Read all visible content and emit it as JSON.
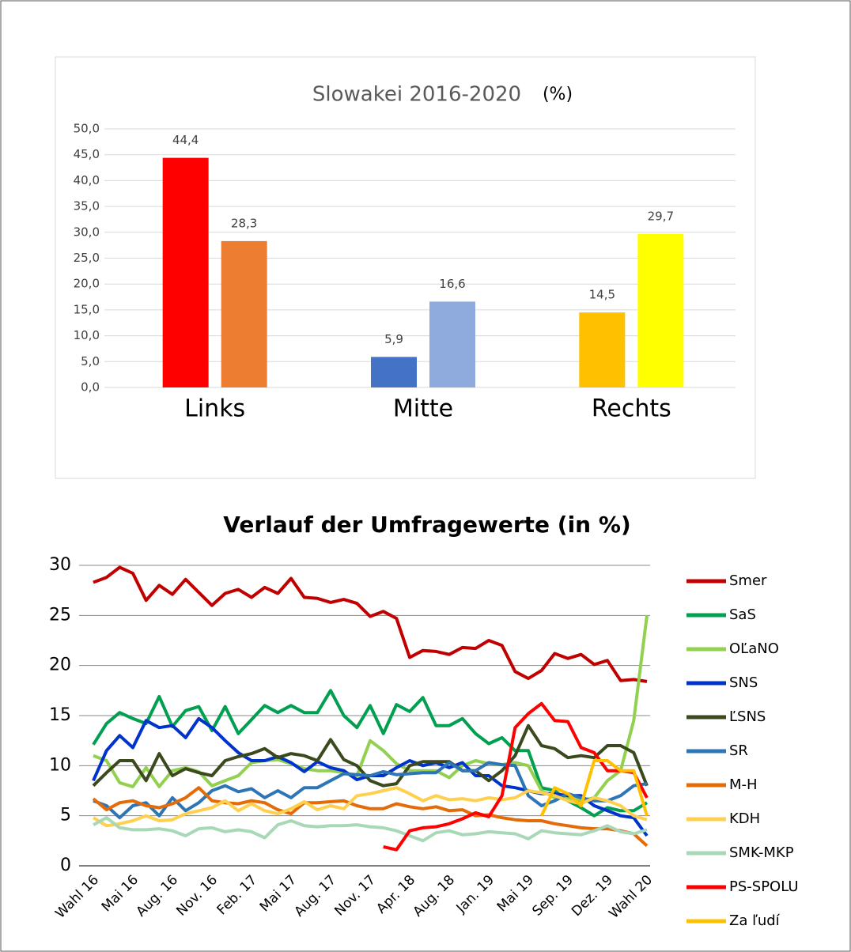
{
  "chart_data": [
    {
      "type": "bar",
      "title": "Slowakei 2016-2020",
      "subtitle": "(%)",
      "categories": [
        "Links",
        "Mitte",
        "Rechts"
      ],
      "series": [
        {
          "values": [
            44.4,
            5.9,
            14.5
          ],
          "value_labels": [
            "44,4",
            "5,9",
            "14,5"
          ],
          "colors": [
            "#ff0000",
            "#4472c4",
            "#ffc000"
          ]
        },
        {
          "values": [
            28.3,
            16.6,
            29.7
          ],
          "value_labels": [
            "28,3",
            "16,6",
            "29,7"
          ],
          "colors": [
            "#ed7d31",
            "#8faadc",
            "#ffff00"
          ]
        }
      ],
      "ylim": [
        0,
        50
      ],
      "yticks": [
        {
          "value": 0,
          "label": "0,0"
        },
        {
          "value": 5,
          "label": "5,0"
        },
        {
          "value": 10,
          "label": "10,0"
        },
        {
          "value": 15,
          "label": "15,0"
        },
        {
          "value": 20,
          "label": "20,0"
        },
        {
          "value": 25,
          "label": "25,0"
        },
        {
          "value": 30,
          "label": "30,0"
        },
        {
          "value": 35,
          "label": "35,0"
        },
        {
          "value": 40,
          "label": "40,0"
        },
        {
          "value": 45,
          "label": "45,0"
        },
        {
          "value": 50,
          "label": "50,0"
        }
      ],
      "grid": true
    },
    {
      "type": "line",
      "title": "Verlauf der Umfragewerte (in %)",
      "categories": [
        "Wahl 16",
        null,
        null,
        "Mai 16",
        null,
        null,
        "Aug. 16",
        null,
        null,
        "Nov. 16",
        null,
        null,
        "Feb. 17",
        null,
        null,
        "Mai 17",
        null,
        null,
        "Aug. 17",
        null,
        null,
        "Nov. 17",
        null,
        null,
        "Apr. 18",
        null,
        null,
        "Aug. 18",
        null,
        null,
        "Jan. 19",
        null,
        null,
        "Mai 19",
        null,
        null,
        "Sep. 19",
        null,
        null,
        "Dez. 19",
        null,
        null,
        "Wahl 20"
      ],
      "ylim": [
        0,
        30
      ],
      "yticks": [
        0,
        5,
        10,
        15,
        20,
        25,
        30
      ],
      "grid": true,
      "legend": "right",
      "series": [
        {
          "name": "Smer",
          "color": "#c00000",
          "values": [
            28.3,
            28.8,
            29.8,
            29.2,
            26.5,
            28,
            27.1,
            28.6,
            27.3,
            26,
            27.2,
            27.6,
            26.8,
            27.8,
            27.2,
            28.7,
            26.8,
            26.7,
            26.3,
            26.6,
            26.2,
            24.9,
            25.4,
            24.7,
            20.8,
            21.5,
            21.4,
            21.1,
            21.8,
            21.7,
            22.5,
            22,
            19.4,
            18.7,
            19.5,
            21.2,
            20.7,
            21.1,
            20.1,
            20.5,
            18.5,
            18.6,
            18.4
          ]
        },
        {
          "name": "SaS",
          "color": "#00a050",
          "values": [
            12.1,
            14.2,
            15.3,
            14.7,
            14.2,
            16.9,
            13.9,
            15.5,
            15.9,
            13.5,
            15.9,
            13.2,
            14.6,
            16,
            15.3,
            16,
            15.3,
            15.3,
            17.5,
            15,
            13.8,
            16,
            13.2,
            16.1,
            15.4,
            16.8,
            14,
            14,
            14.7,
            13.2,
            12.2,
            12.8,
            11.5,
            11.5,
            7.8,
            7.5,
            6.5,
            5.8,
            5,
            5.8,
            5.5,
            5.5,
            6.3
          ]
        },
        {
          "name": "OĽaNO",
          "color": "#92d050",
          "values": [
            11,
            10.5,
            8.3,
            7.9,
            9.8,
            7.9,
            9.5,
            9.8,
            9.4,
            8,
            8.5,
            9,
            10.3,
            10.5,
            10.6,
            10.2,
            9.7,
            9.5,
            9.5,
            9.3,
            9,
            12.5,
            11.5,
            10.2,
            9.5,
            9.5,
            9.5,
            8.8,
            10,
            10.5,
            10.2,
            10.1,
            10.3,
            10,
            7.5,
            6.8,
            6.8,
            6.5,
            6.8,
            8.5,
            9.5,
            14.5,
            25
          ]
        },
        {
          "name": "SNS",
          "color": "#0033cc",
          "values": [
            8.5,
            11.5,
            13,
            11.8,
            14.5,
            13.8,
            14,
            12.8,
            14.7,
            13.8,
            12.5,
            11.3,
            10.5,
            10.5,
            10.9,
            10.3,
            9.4,
            10.4,
            9.8,
            9.5,
            8.6,
            9,
            9,
            9.8,
            10.5,
            10,
            10.3,
            9.8,
            10.3,
            9,
            9,
            8,
            7.8,
            7.5,
            7.2,
            7.2,
            7,
            7,
            6,
            5.5,
            5,
            4.8,
            3
          ]
        },
        {
          "name": "ĽSNS",
          "color": "#3a4a1e",
          "values": [
            8,
            9.3,
            10.5,
            10.5,
            8.5,
            11.2,
            9,
            9.7,
            9.3,
            9,
            10.5,
            10.9,
            11.2,
            11.7,
            10.8,
            11.2,
            11,
            10.5,
            12.6,
            10.6,
            10,
            8.5,
            8,
            8.2,
            10,
            10.4,
            10.4,
            10.4,
            9.5,
            9.5,
            8.5,
            9.5,
            11,
            14,
            12,
            11.7,
            10.8,
            11,
            10.8,
            12,
            12,
            11.3,
            8
          ]
        },
        {
          "name": "SR",
          "color": "#2e75b6",
          "values": [
            6.5,
            6,
            4.8,
            6,
            6.3,
            5,
            6.8,
            5.5,
            6.3,
            7.5,
            8,
            7.4,
            7.7,
            6.8,
            7.5,
            6.8,
            7.8,
            7.8,
            8.5,
            9.2,
            9.1,
            9,
            9.4,
            9.1,
            9.2,
            9.3,
            9.3,
            10.3,
            9.5,
            9.5,
            10.3,
            10.1,
            10,
            7,
            6,
            6.5,
            7.2,
            6.8,
            6.5,
            6.5,
            7,
            8,
            8.2
          ]
        },
        {
          "name": "M-H",
          "color": "#e36c09",
          "values": [
            6.7,
            5.6,
            6.3,
            6.5,
            6,
            5.8,
            6.2,
            6.8,
            7.8,
            6.5,
            6.3,
            6.2,
            6.5,
            6.3,
            5.6,
            5.2,
            6.3,
            6.3,
            6.4,
            6.5,
            6,
            5.7,
            5.7,
            6.2,
            5.9,
            5.7,
            5.9,
            5.5,
            5.6,
            5,
            5.1,
            4.8,
            4.6,
            4.5,
            4.5,
            4.2,
            4,
            3.8,
            3.7,
            3.7,
            3.5,
            3.2,
            2
          ]
        },
        {
          "name": "KDH",
          "color": "#ffd050",
          "values": [
            4.8,
            4,
            4.2,
            4.5,
            5,
            4.5,
            4.6,
            5.2,
            5.5,
            5.8,
            6.5,
            5.5,
            6.2,
            5.5,
            5.2,
            5.7,
            6.4,
            5.6,
            6,
            5.7,
            7,
            7.2,
            7.5,
            7.8,
            7.2,
            6.5,
            7,
            6.6,
            6.7,
            6.5,
            6.8,
            6.6,
            6.8,
            7.5,
            7.3,
            7,
            6.5,
            6.2,
            6.8,
            6.5,
            6,
            5,
            4.6
          ]
        },
        {
          "name": "SMK-MKP",
          "color": "#a9d8b8",
          "values": [
            4.1,
            4.8,
            3.8,
            3.6,
            3.6,
            3.7,
            3.5,
            3,
            3.7,
            3.8,
            3.4,
            3.6,
            3.4,
            2.8,
            4.1,
            4.5,
            4,
            3.9,
            4,
            4,
            4.1,
            3.9,
            3.8,
            3.5,
            3,
            2.5,
            3.3,
            3.5,
            3.1,
            3.2,
            3.4,
            3.3,
            3.2,
            2.7,
            3.5,
            3.3,
            3.2,
            3.1,
            3.5,
            4,
            3.4,
            3.2,
            3.6
          ]
        },
        {
          "name": "PS-SPOLU",
          "color": "#ff0000",
          "values": [
            null,
            null,
            null,
            null,
            null,
            null,
            null,
            null,
            null,
            null,
            null,
            null,
            null,
            null,
            null,
            null,
            null,
            null,
            null,
            null,
            null,
            null,
            1.9,
            1.6,
            3.5,
            3.8,
            3.9,
            4.2,
            4.7,
            5.3,
            4.9,
            7,
            13.8,
            15.2,
            16.2,
            14.5,
            14.4,
            11.8,
            11.3,
            9.5,
            9.5,
            9.3,
            6.8
          ]
        },
        {
          "name": "Za ľudí",
          "color": "#ffc000",
          "values": [
            null,
            null,
            null,
            null,
            null,
            null,
            null,
            null,
            null,
            null,
            null,
            null,
            null,
            null,
            null,
            null,
            null,
            null,
            null,
            null,
            null,
            null,
            null,
            null,
            null,
            null,
            null,
            null,
            null,
            null,
            null,
            null,
            null,
            null,
            5,
            7.8,
            7.2,
            6,
            10.5,
            10.5,
            9.5,
            9.5,
            5
          ]
        }
      ]
    }
  ]
}
